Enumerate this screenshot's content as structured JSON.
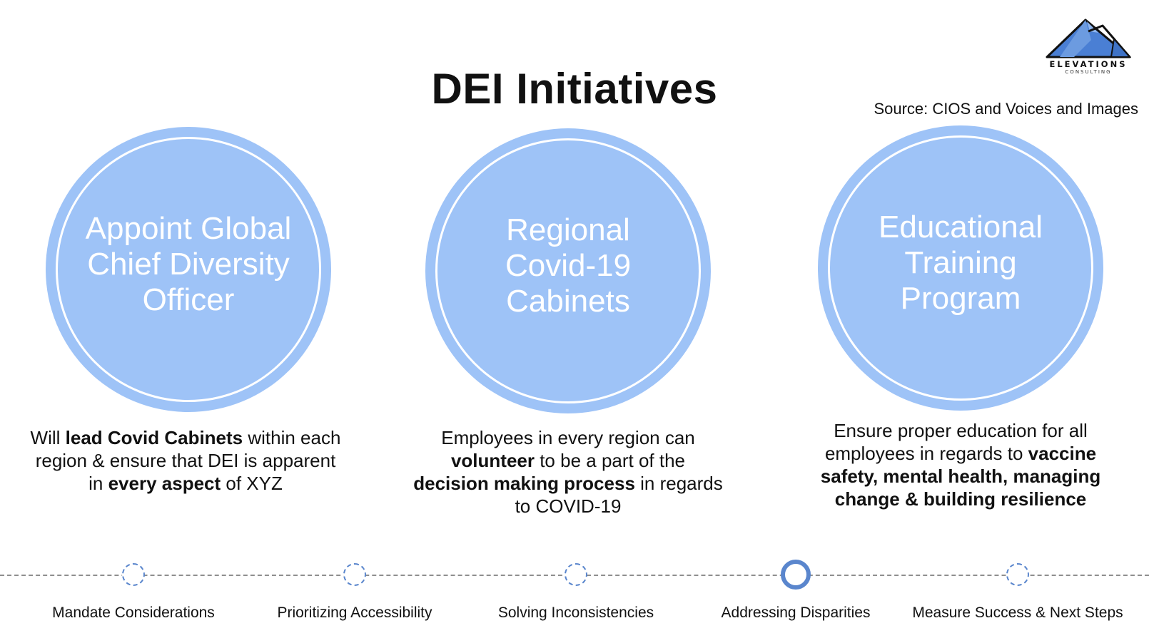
{
  "title": "DEI Initiatives",
  "logo": {
    "name": "ELEVATIONS",
    "sub": "CONSULTING"
  },
  "source": "Source: CIOS and Voices and Images",
  "initiatives": [
    {
      "title_lines": [
        "Appoint Global",
        "Chief Diversity",
        "Officer"
      ],
      "desc": [
        {
          "t": "Will ",
          "b": false
        },
        {
          "t": "lead Covid Cabinets",
          "b": true
        },
        {
          "t": " within each region & ensure that DEI is apparent in ",
          "b": false
        },
        {
          "t": "every aspect",
          "b": true
        },
        {
          "t": " of XYZ",
          "b": false
        }
      ]
    },
    {
      "title_lines": [
        "Regional",
        "Covid-19",
        "Cabinets"
      ],
      "desc": [
        {
          "t": "Employees in every region can ",
          "b": false
        },
        {
          "t": "volunteer",
          "b": true
        },
        {
          "t": " to be a part of the ",
          "b": false
        },
        {
          "t": "decision making process",
          "b": true
        },
        {
          "t": " in regards to COVID-19",
          "b": false
        }
      ]
    },
    {
      "title_lines": [
        "Educational",
        "Training",
        "Program"
      ],
      "desc": [
        {
          "t": "Ensure proper education for all employees in regards to ",
          "b": false
        },
        {
          "t": "vaccine safety, mental health, managing change & building resilience",
          "b": true
        }
      ]
    }
  ],
  "steps": [
    {
      "label": "Mandate Considerations",
      "active": false
    },
    {
      "label": "Prioritizing Accessibility",
      "active": false
    },
    {
      "label": "Solving Inconsistencies",
      "active": false
    },
    {
      "label": "Addressing Disparities",
      "active": true
    },
    {
      "label": "Measure Success & Next Steps",
      "active": false
    }
  ],
  "colors": {
    "circle": "#9ec3f7",
    "accent": "#5a86cd",
    "mountain": "#4a7fd4"
  }
}
